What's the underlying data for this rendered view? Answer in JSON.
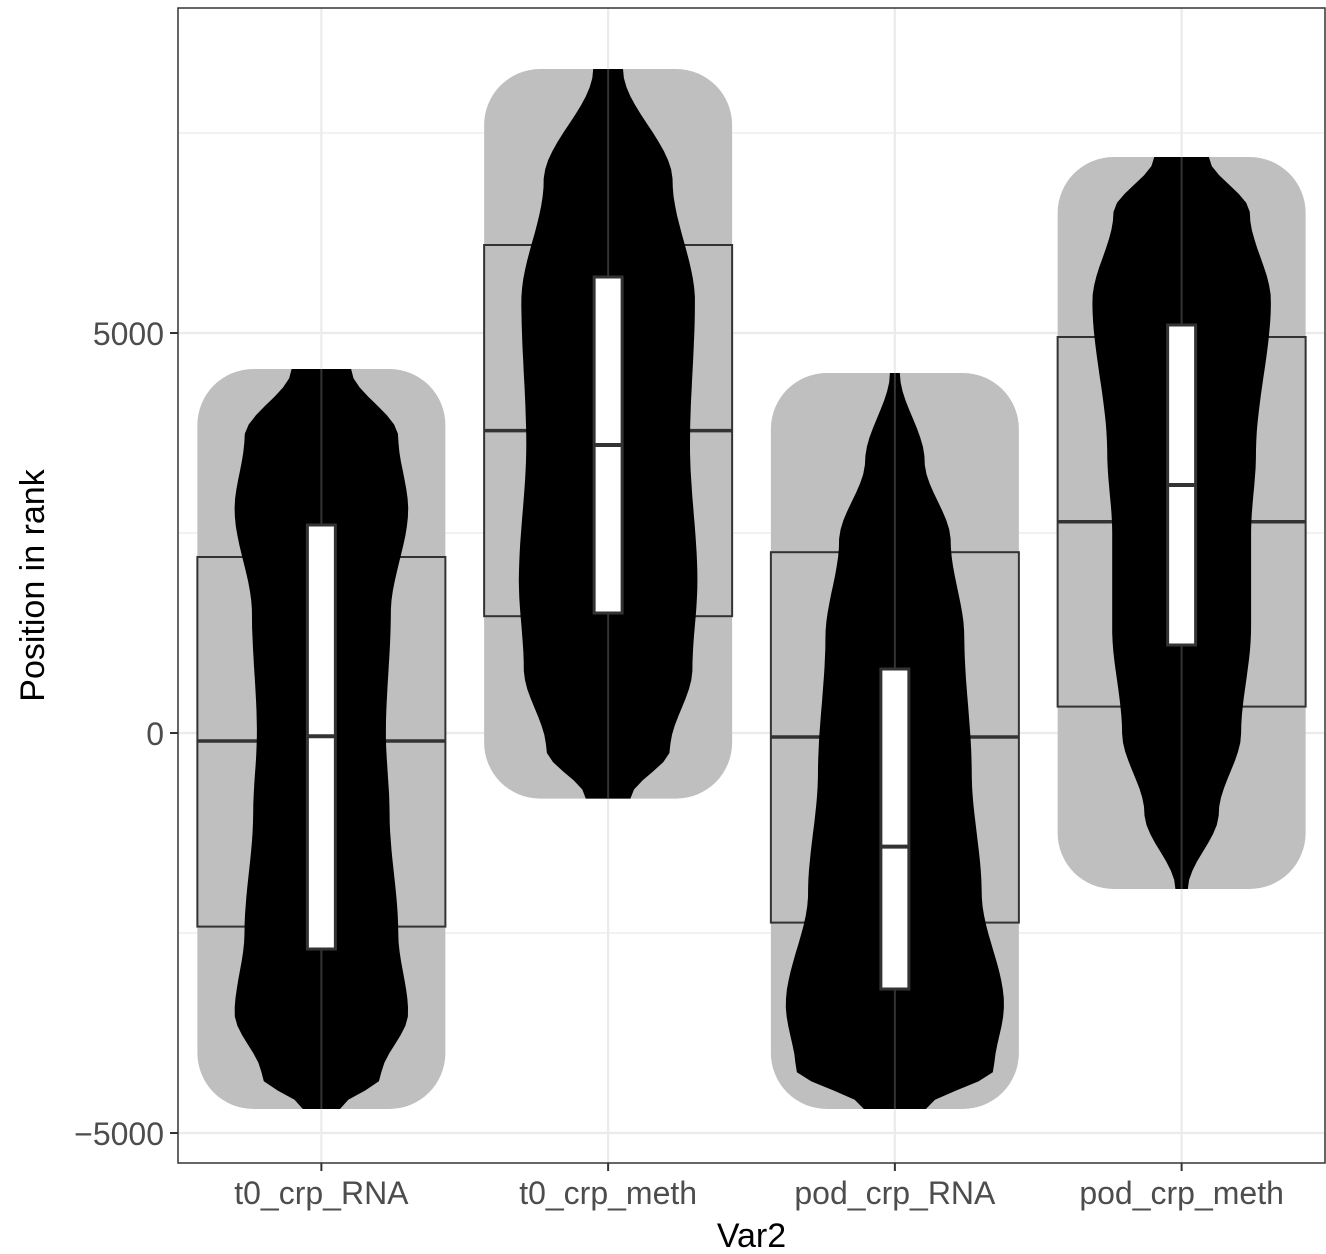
{
  "chart_data": {
    "type": "violin",
    "xlabel": "Var2",
    "ylabel": "Position in rank",
    "ylim": [
      -5400,
      9000
    ],
    "yticks": [
      -5000,
      0,
      5000
    ],
    "ytick_labels": [
      "−5000",
      "0",
      "5000"
    ],
    "grid": true,
    "categories": [
      "t0_crp_RNA",
      "t0_crp_meth",
      "pod_crp_RNA",
      "pod_crp_meth"
    ],
    "groups": [
      {
        "category": "t0_crp_RNA",
        "min": -4700,
        "max": 4550,
        "outer_box": {
          "q1": -2420,
          "median": -100,
          "q3": 2200
        },
        "inner_box": {
          "q1": -2700,
          "median": -40,
          "q3": 2600
        },
        "density_profile": [
          [
            -4700,
            0.15
          ],
          [
            -4300,
            0.48
          ],
          [
            -3500,
            0.7
          ],
          [
            -2500,
            0.62
          ],
          [
            -1000,
            0.55
          ],
          [
            0,
            0.52
          ],
          [
            1500,
            0.56
          ],
          [
            2800,
            0.7
          ],
          [
            3700,
            0.62
          ],
          [
            4550,
            0.24
          ]
        ]
      },
      {
        "category": "t0_crp_meth",
        "min": -820,
        "max": 8300,
        "outer_box": {
          "q1": 1460,
          "median": 3780,
          "q3": 6100
        },
        "inner_box": {
          "q1": 1500,
          "median": 3600,
          "q3": 5700
        },
        "density_profile": [
          [
            -820,
            0.18
          ],
          [
            -200,
            0.5
          ],
          [
            800,
            0.68
          ],
          [
            1900,
            0.72
          ],
          [
            3600,
            0.66
          ],
          [
            5400,
            0.7
          ],
          [
            6900,
            0.52
          ],
          [
            8300,
            0.12
          ]
        ]
      },
      {
        "category": "pod_crp_RNA",
        "min": -4700,
        "max": 4500,
        "outer_box": {
          "q1": -2370,
          "median": -50,
          "q3": 2260
        },
        "inner_box": {
          "q1": -3200,
          "median": -1420,
          "q3": 800
        },
        "density_profile": [
          [
            -4700,
            0.25
          ],
          [
            -4200,
            0.8
          ],
          [
            -3400,
            0.88
          ],
          [
            -2000,
            0.7
          ],
          [
            -500,
            0.62
          ],
          [
            1200,
            0.56
          ],
          [
            2400,
            0.45
          ],
          [
            3400,
            0.24
          ],
          [
            4500,
            0.04
          ]
        ]
      },
      {
        "category": "pod_crp_meth",
        "min": -1950,
        "max": 7200,
        "outer_box": {
          "q1": 330,
          "median": 2640,
          "q3": 4950
        },
        "inner_box": {
          "q1": 1100,
          "median": 3100,
          "q3": 5100
        },
        "density_profile": [
          [
            -1950,
            0.05
          ],
          [
            -1000,
            0.3
          ],
          [
            0,
            0.48
          ],
          [
            1300,
            0.56
          ],
          [
            2500,
            0.56
          ],
          [
            3500,
            0.6
          ],
          [
            5400,
            0.72
          ],
          [
            6500,
            0.55
          ],
          [
            7200,
            0.22
          ]
        ]
      }
    ],
    "colors": {
      "violin_fill": "#000000",
      "shadow_fill": "#bfbfbf",
      "outer_box_stroke": "#333333",
      "inner_box_fill": "#ffffff",
      "inner_box_stroke": "#333333",
      "grid": "#ebebeb",
      "panel_border": "#333333"
    }
  }
}
